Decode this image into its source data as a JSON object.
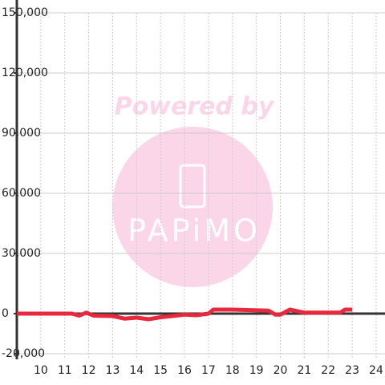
{
  "chart_data": {
    "type": "line",
    "watermark": [
      "Powered by",
      "PAPiMO"
    ],
    "x": [
      9,
      10,
      11,
      11.3,
      11.6,
      11.9,
      12.2,
      13,
      13.5,
      14,
      14.5,
      15,
      15.5,
      16,
      16.5,
      17,
      17.2,
      18,
      19.5,
      19.8,
      20,
      20.4,
      21,
      22.5,
      22.7,
      23
    ],
    "values": [
      0,
      0,
      0,
      0,
      -1000,
      500,
      -1000,
      -1200,
      -2500,
      -2000,
      -2800,
      -1800,
      -1200,
      -500,
      -800,
      0,
      2000,
      2000,
      1500,
      -500,
      -500,
      2000,
      500,
      500,
      2000,
      2000
    ],
    "color": "#e8283c",
    "xlim": [
      9,
      24.37
    ],
    "xticks": [
      10,
      11,
      12,
      13,
      14,
      15,
      16,
      17,
      18,
      19,
      20,
      21,
      22,
      23,
      24
    ],
    "ylim": [
      -20000,
      150000
    ],
    "yticks": [
      {
        "value": -20000,
        "label": "-20,000"
      },
      0,
      {
        "value": 30000,
        "label": "30,000"
      },
      {
        "value": 60000,
        "label": "60,000"
      },
      {
        "value": 90000,
        "label": "90,000"
      },
      {
        "value": 120000,
        "label": "120,000"
      },
      {
        "value": 150000,
        "label": "150,000"
      }
    ],
    "grid": true
  }
}
